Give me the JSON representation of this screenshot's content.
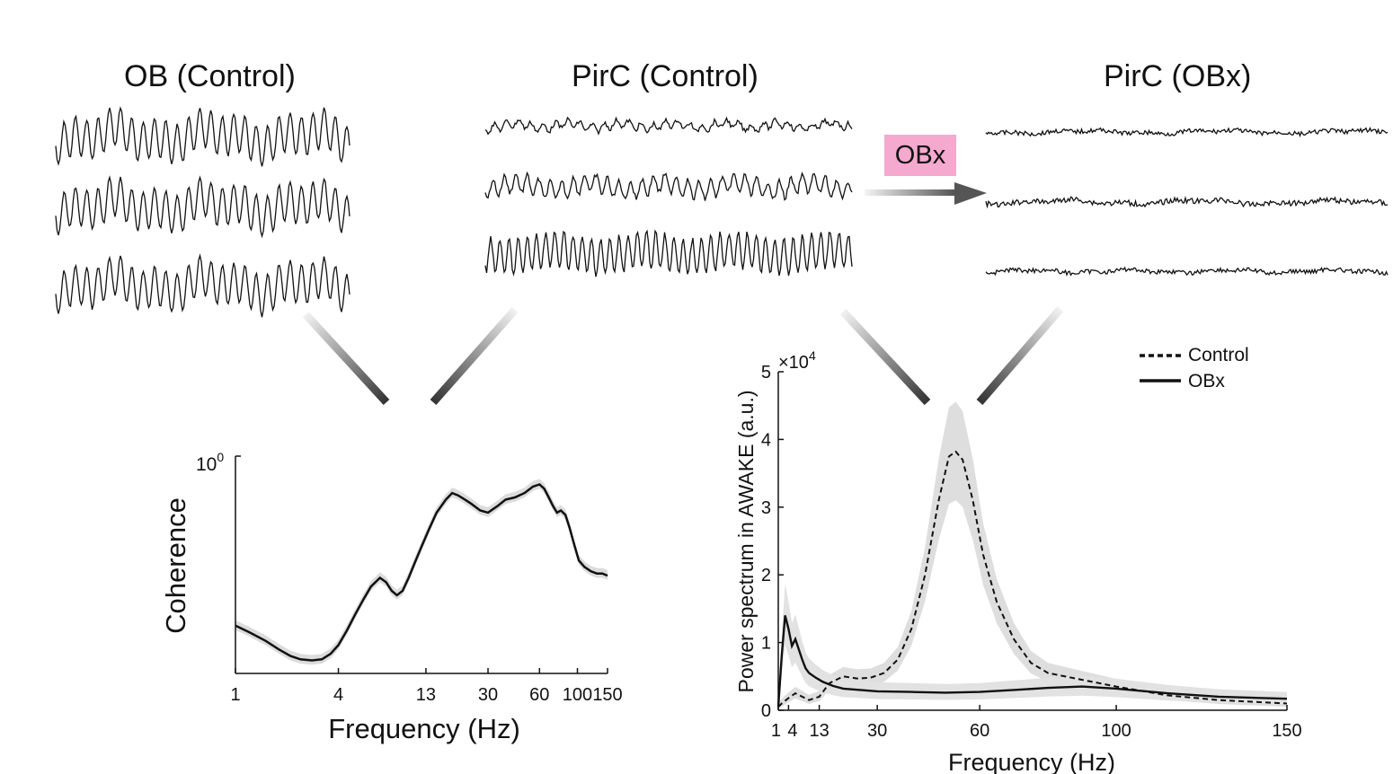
{
  "titles": {
    "ob_control": "OB (Control)",
    "pirc_control": "PirC (Control)",
    "pirc_obx": "PirC (OBx)"
  },
  "badge": {
    "label": "OBx",
    "color": "#f5a9cf"
  },
  "chart_data": [
    {
      "type": "line",
      "title": "",
      "xlabel": "Frequency (Hz)",
      "ylabel": "Coherence",
      "xscale": "log",
      "xlim": [
        1,
        150
      ],
      "ytick_base": "10",
      "ytick_exp": "0",
      "ytick_value": 1,
      "xticks": [
        1,
        4,
        13,
        30,
        60,
        100,
        150
      ],
      "xtick_labels": [
        "1",
        "4",
        "13",
        "30",
        "60",
        "100",
        "150"
      ],
      "series": [
        {
          "name": "Coherence",
          "x": [
            1,
            1.2,
            1.5,
            1.8,
            2.1,
            2.4,
            2.8,
            3.2,
            3.6,
            4,
            4.5,
            5,
            5.6,
            6.2,
            7,
            7.6,
            8.2,
            8.8,
            9.5,
            10.3,
            11.2,
            12.2,
            13.5,
            15,
            17,
            18.5,
            20,
            22,
            24,
            27,
            30,
            34,
            38,
            43,
            49,
            55,
            60,
            64,
            68,
            72,
            76,
            80,
            85,
            90,
            96,
            102,
            110,
            120,
            130,
            140,
            150
          ],
          "y": [
            0.22,
            0.19,
            0.15,
            0.11,
            0.08,
            0.065,
            0.06,
            0.065,
            0.09,
            0.13,
            0.2,
            0.27,
            0.34,
            0.4,
            0.44,
            0.42,
            0.38,
            0.36,
            0.38,
            0.44,
            0.51,
            0.58,
            0.66,
            0.74,
            0.8,
            0.83,
            0.82,
            0.8,
            0.78,
            0.75,
            0.74,
            0.77,
            0.8,
            0.81,
            0.83,
            0.86,
            0.87,
            0.85,
            0.81,
            0.77,
            0.74,
            0.75,
            0.73,
            0.67,
            0.59,
            0.52,
            0.49,
            0.47,
            0.46,
            0.46,
            0.45
          ]
        }
      ]
    },
    {
      "type": "line",
      "title": "",
      "xlabel": "Frequency (Hz)",
      "ylabel": "Power spectrum in AWAKE (a.u.)",
      "axis_multiplier_base": "×10",
      "axis_multiplier_exp": "4",
      "xlim": [
        1,
        150
      ],
      "ylim": [
        0,
        5
      ],
      "yticks": [
        0,
        1,
        2,
        3,
        4,
        5
      ],
      "xticks": [
        1,
        4,
        13,
        30,
        60,
        100,
        150
      ],
      "xtick_labels": [
        "1",
        "4",
        "13",
        "30",
        "60",
        "100",
        "150"
      ],
      "legend": {
        "position": "top-right",
        "entries": [
          {
            "label": "Control",
            "style": "dashed"
          },
          {
            "label": "OBx",
            "style": "solid"
          }
        ]
      },
      "series": [
        {
          "name": "Control",
          "style": "dashed",
          "x": [
            1,
            2,
            4,
            6,
            8,
            10,
            13,
            16,
            20,
            24,
            28,
            32,
            36,
            40,
            44,
            48,
            51,
            53,
            55,
            58,
            61,
            65,
            70,
            75,
            80,
            90,
            100,
            115,
            130,
            150
          ],
          "y": [
            0.05,
            0.1,
            0.18,
            0.25,
            0.2,
            0.15,
            0.2,
            0.4,
            0.5,
            0.47,
            0.48,
            0.55,
            0.75,
            1.2,
            2.0,
            3.1,
            3.75,
            3.82,
            3.7,
            3.1,
            2.3,
            1.6,
            1.05,
            0.7,
            0.55,
            0.45,
            0.35,
            0.22,
            0.15,
            0.1
          ]
        },
        {
          "name": "OBx",
          "style": "solid",
          "x": [
            1,
            2,
            3,
            4,
            5,
            6,
            7,
            8,
            9,
            10,
            12,
            14,
            17,
            20,
            25,
            30,
            40,
            50,
            60,
            70,
            80,
            90,
            100,
            115,
            130,
            150
          ],
          "y": [
            0.05,
            0.8,
            1.4,
            1.2,
            0.95,
            1.05,
            0.9,
            0.75,
            0.62,
            0.55,
            0.48,
            0.42,
            0.36,
            0.32,
            0.3,
            0.28,
            0.27,
            0.26,
            0.27,
            0.3,
            0.33,
            0.35,
            0.32,
            0.25,
            0.2,
            0.17
          ]
        }
      ]
    }
  ]
}
